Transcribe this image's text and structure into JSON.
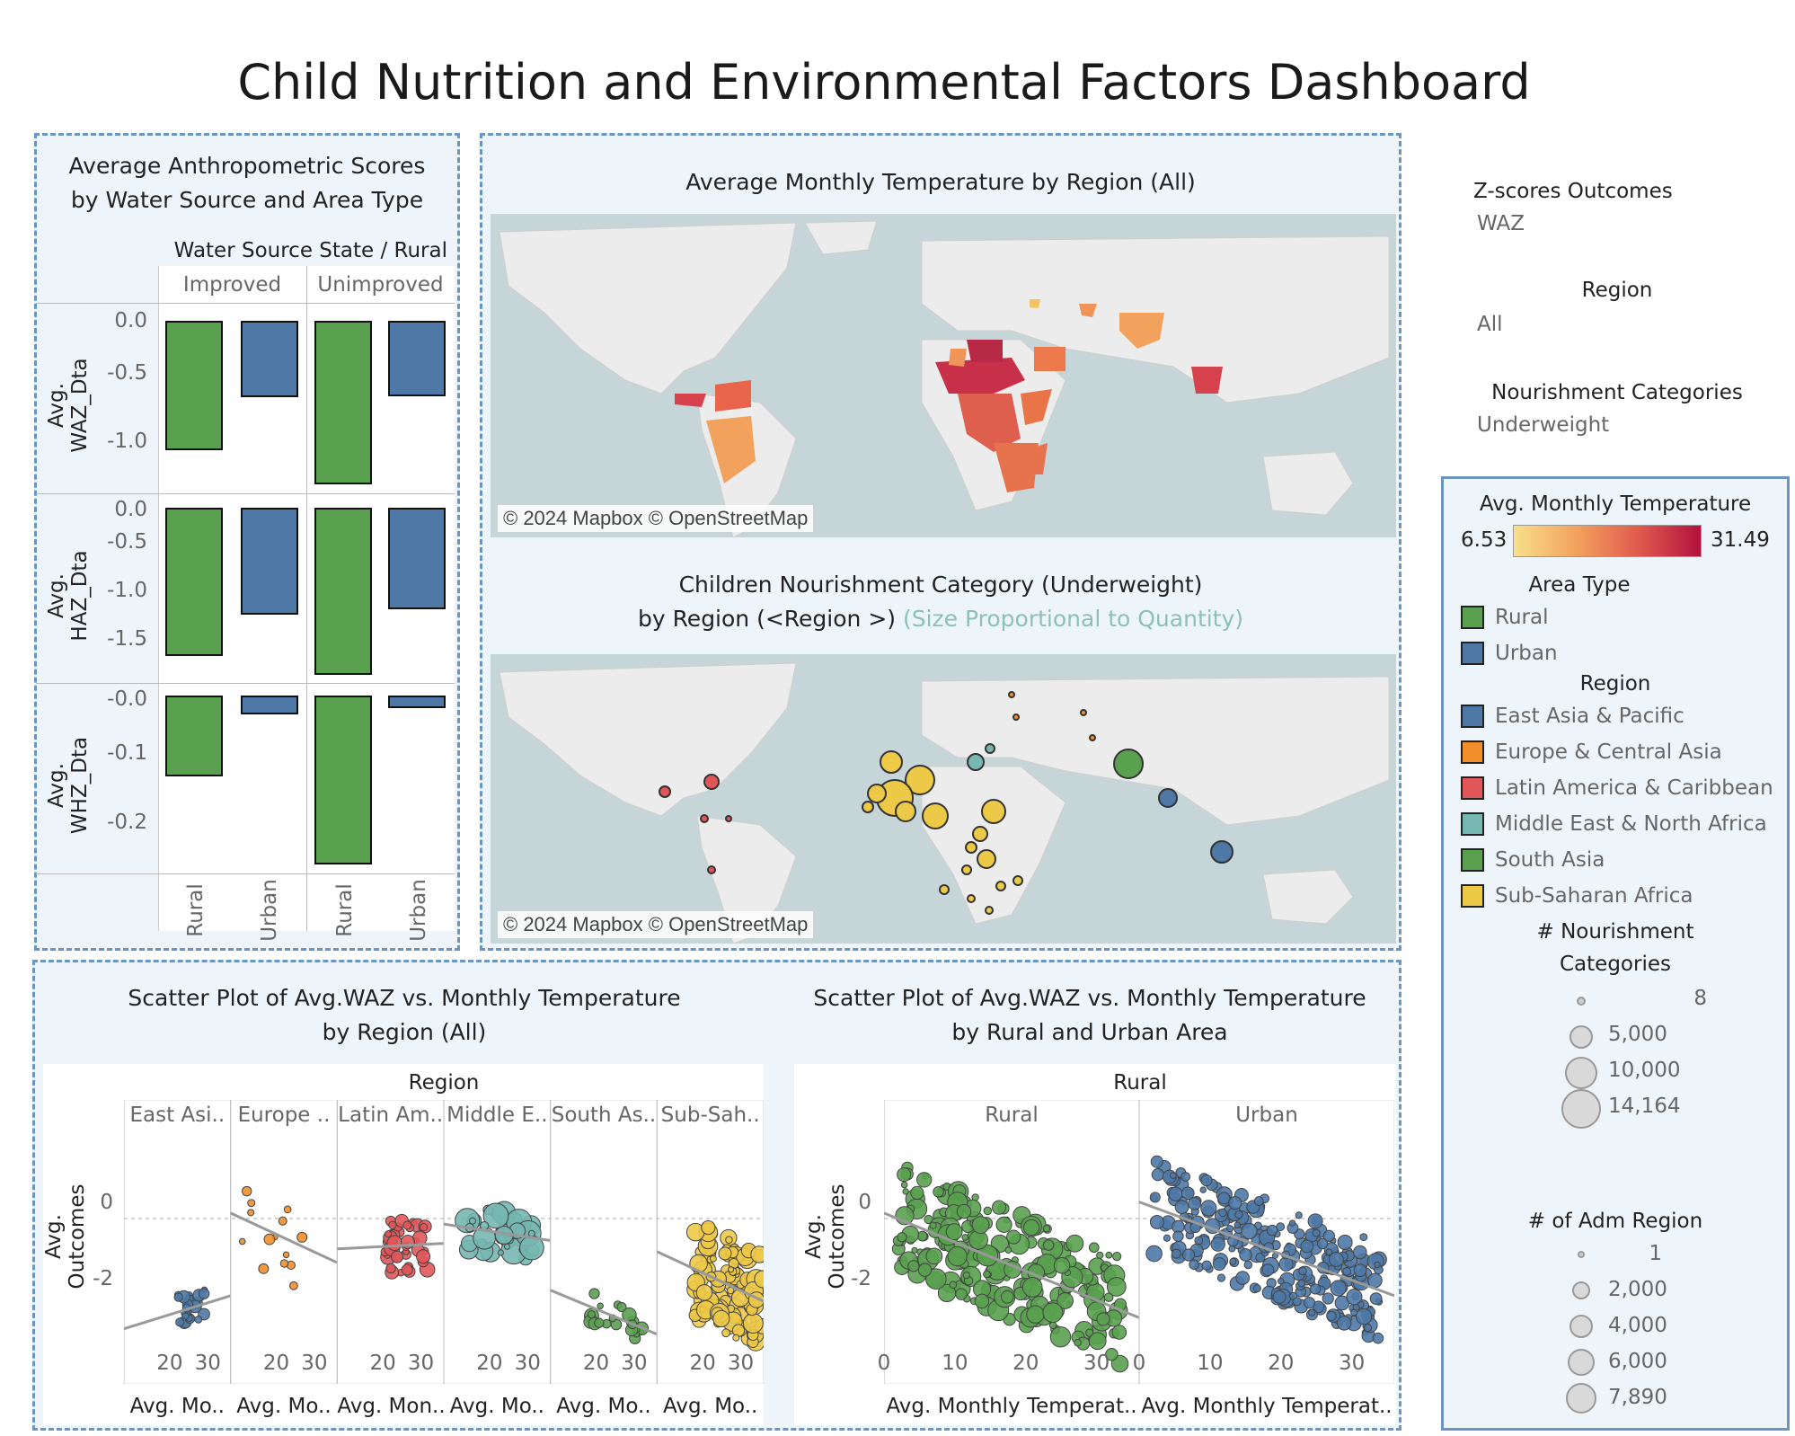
{
  "dashboard_title": "Child Nutrition and Environmental Factors Dashboard",
  "filters": {
    "zscore_label": "Z-scores Outcomes",
    "zscore_value": "WAZ",
    "region_label": "Region",
    "region_value": "All",
    "nourish_label": "Nourishment Categories",
    "nourish_value": "Underweight"
  },
  "map_credit": "© 2024 Mapbox © OpenStreetMap",
  "legend": {
    "temp_title": "Avg. Monthly Temperature",
    "temp_min": "6.53",
    "temp_max": "31.49",
    "area_title": "Area Type",
    "area_items": [
      {
        "label": "Rural",
        "color": "#59a14f"
      },
      {
        "label": "Urban",
        "color": "#4e79a7"
      }
    ],
    "region_title": "Region",
    "region_items": [
      {
        "label": "East Asia & Pacific",
        "color": "#4e79a7"
      },
      {
        "label": "Europe & Central Asia",
        "color": "#f28e2b"
      },
      {
        "label": "Latin America & Caribbean",
        "color": "#e15759"
      },
      {
        "label": "Middle East & North Africa",
        "color": "#76b7b2"
      },
      {
        "label": "South Asia",
        "color": "#59a14f"
      },
      {
        "label": "Sub-Saharan Africa",
        "color": "#edc948"
      }
    ],
    "nourish_size_title_1": "# Nourishment",
    "nourish_size_title_2": "Categories",
    "nourish_sizes": [
      "8",
      "5,000",
      "10,000",
      "14,164"
    ],
    "adm_title": "# of Adm Region",
    "adm_sizes": [
      "1",
      "2,000",
      "4,000",
      "6,000",
      "7,890"
    ]
  },
  "bar_panel": {
    "title_1": "Average Anthropometric Scores",
    "title_2": "by Water Source and Area Type",
    "header": "Water Source State  /  Rural",
    "col_groups": [
      "Improved",
      "Unimproved"
    ],
    "x_labels": [
      "Rural",
      "Urban",
      "Rural",
      "Urban"
    ],
    "row_labels": [
      "Avg. WAZ_Dta",
      "Avg. HAZ_Dta",
      "Avg. WHZ_Dta"
    ],
    "row_ticks": [
      [
        "0.0",
        "-0.5",
        "-1.0"
      ],
      [
        "0.0",
        "-0.5",
        "-1.0",
        "-1.5"
      ],
      [
        "-0.0",
        "-0.1",
        "-0.2"
      ]
    ]
  },
  "map1_title": "Average Monthly Temperature by Region (All)",
  "map2_title_1": "Children Nourishment Category (Underweight)",
  "map2_title_2": "by Region (<Region >)",
  "map2_note": "(Size Proportional to Quantity)",
  "scatter1": {
    "title_1": "Scatter Plot of Avg.WAZ vs. Monthly Temperature",
    "title_2": "by Region (All)",
    "header": "Region",
    "facets": [
      "East Asi..",
      "Europe ..",
      "Latin Am..",
      "Middle E..",
      "South As..",
      "Sub-Sah.."
    ],
    "x_titles": [
      "Avg. Mo..",
      "Avg. Mo..",
      "Avg. Mon..",
      "Avg. Mo..",
      "Avg. Mo..",
      "Avg. Mo.."
    ],
    "x_ticks": [
      "20",
      "30"
    ],
    "y_title": "Avg. Outcomes",
    "y_ticks": [
      "0",
      "-2"
    ]
  },
  "scatter2": {
    "title_1": "Scatter Plot of Avg.WAZ vs. Monthly Temperature",
    "title_2": "by Rural and Urban Area",
    "header": "Rural",
    "facets": [
      "Rural",
      "Urban"
    ],
    "x_titles": [
      "Avg. Monthly Temperat..",
      "Avg. Monthly Temperat.."
    ],
    "x_ticks": [
      "0",
      "10",
      "20",
      "30"
    ],
    "y_title": "Avg. Outcomes",
    "y_ticks": [
      "0",
      "-2"
    ]
  },
  "chart_data": [
    {
      "type": "bar",
      "name": "Average Anthropometric Scores by Water Source and Area Type",
      "categories": [
        "Improved / Rural",
        "Improved / Urban",
        "Unimproved / Rural",
        "Unimproved / Urban"
      ],
      "series": [
        {
          "name": "Avg. WAZ_Dta",
          "values": [
            -1.05,
            -0.62,
            -1.33,
            -0.61
          ],
          "ylim": [
            -1.33,
            0.15
          ]
        },
        {
          "name": "Avg. HAZ_Dta",
          "values": [
            -1.6,
            -1.15,
            -1.8,
            -1.1
          ],
          "ylim": [
            -1.8,
            0.15
          ]
        },
        {
          "name": "Avg. WHZ_Dta",
          "values": [
            -0.13,
            -0.03,
            -0.27,
            -0.02
          ],
          "ylim": [
            -0.27,
            0.02
          ]
        }
      ],
      "colors": [
        "#59a14f",
        "#4e79a7",
        "#59a14f",
        "#4e79a7"
      ]
    },
    {
      "type": "scatter",
      "name": "Scatter Plot of Avg.WAZ vs. Monthly Temperature by Region (All)",
      "ylim": [
        -3,
        1.5
      ],
      "facets": [
        {
          "region": "East Asia & Pacific",
          "xlim": [
            8,
            36
          ],
          "trend": [
            [
              8,
              -2
            ],
            [
              36,
              -1.4
            ]
          ]
        },
        {
          "region": "Europe & Central Asia",
          "xlim": [
            8,
            36
          ],
          "trend": [
            [
              8,
              0.1
            ],
            [
              36,
              -0.8
            ]
          ]
        },
        {
          "region": "Latin America & Caribbean",
          "xlim": [
            8,
            36
          ],
          "trend": [
            [
              8,
              -0.55
            ],
            [
              36,
              -0.45
            ]
          ]
        },
        {
          "region": "Middle East & North Africa",
          "xlim": [
            8,
            36
          ],
          "trend": [
            [
              8,
              -0.1
            ],
            [
              36,
              -0.4
            ]
          ]
        },
        {
          "region": "South Asia",
          "xlim": [
            8,
            36
          ],
          "trend": [
            [
              8,
              -1.3
            ],
            [
              36,
              -2.1
            ]
          ]
        },
        {
          "region": "Sub-Saharan Africa",
          "xlim": [
            8,
            36
          ],
          "trend": [
            [
              8,
              -0.6
            ],
            [
              36,
              -1.5
            ]
          ]
        }
      ]
    },
    {
      "type": "scatter",
      "name": "Scatter Plot of Avg.WAZ vs. Monthly Temperature by Rural and Urban Area",
      "ylim": [
        -3,
        1.5
      ],
      "facets": [
        {
          "area": "Rural",
          "xlim": [
            0,
            36
          ],
          "trend": [
            [
              0,
              0.1
            ],
            [
              36,
              -1.8
            ]
          ]
        },
        {
          "area": "Urban",
          "xlim": [
            0,
            36
          ],
          "trend": [
            [
              0,
              0.3
            ],
            [
              36,
              -1.4
            ]
          ]
        }
      ]
    }
  ]
}
